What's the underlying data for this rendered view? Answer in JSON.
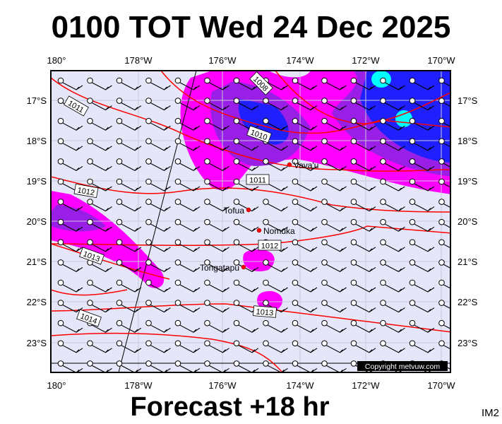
{
  "title": "0100 TOT Wed 24 Dec 2025",
  "footer": "Forecast +18 hr",
  "corner_label": "IM2",
  "copyright": "Copyright metvuw.com",
  "lon_labels": [
    "180°",
    "178°W",
    "176°W",
    "174°W",
    "172°W",
    "170°W"
  ],
  "lat_labels": [
    "17°S",
    "18°S",
    "19°S",
    "20°S",
    "21°S",
    "22°S",
    "23°S"
  ],
  "places": [
    {
      "name": "Vava'u"
    },
    {
      "name": "Tofua"
    },
    {
      "name": "Nomuka"
    },
    {
      "name": "Tongatapu"
    }
  ],
  "isobar_labels": [
    "1008",
    "1011",
    "1010",
    "1011",
    "1012",
    "1012",
    "1013",
    "1013",
    "1014"
  ],
  "colors": {
    "background": "#e6e6fa",
    "isobar": "#ff0000",
    "rain_light": "#ff00ff",
    "rain_mid": "#9a1fe6",
    "rain_heavy": "#2020ff",
    "rain_extreme": "#00ffff"
  }
}
